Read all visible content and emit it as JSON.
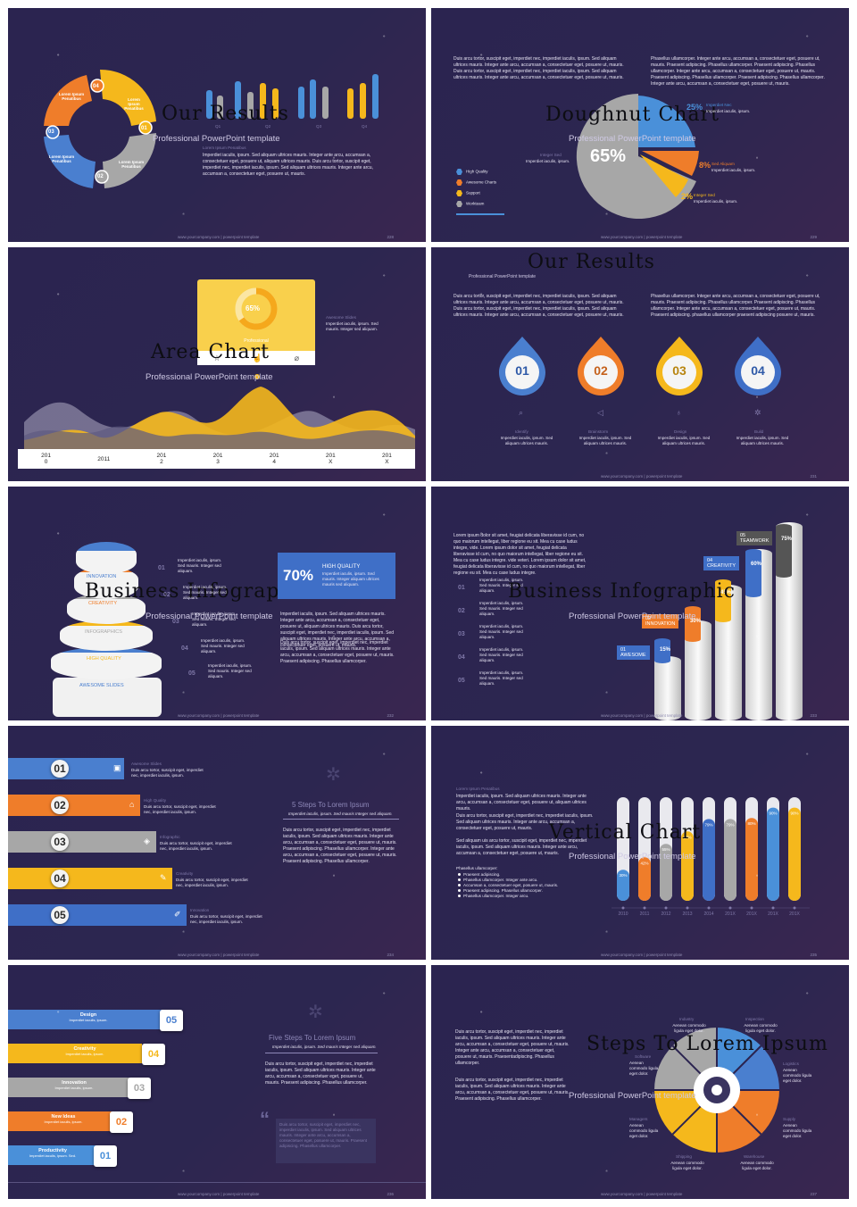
{
  "common": {
    "lorem_short": "Imperdiet iaculis, ipsum. Sed mauris. Integer sed aliquam.",
    "lorem_long": "Duis arcu tortor, suscipit eget, imperdiet nec, imperdiet iaculis, ipsum. Sed aliquam ultrices mauris. Integer ante arcu, accumsan a, consectetuer eget, posuere ut, mauris.",
    "lorem_long2": "Phasellus ullamcorper. Integer ante arcu, accumsan a, consectetuer eget, posuere ut, mauris. Praesent adipiscing. Phasellus ullamcorper. Praesent adipiscing. Phasellus ullamcorper. Integer ante arcu, accumsan a, consectetuer eget, posuere ut, mauris. Praesent adipiscing. phasellus ullamcorper praesent adipiscing posuere ut, mauris.",
    "footer_url": "www.yourcompany.com | powerpoint template",
    "watermark": "风云办公"
  },
  "s228": {
    "title": "Our Results",
    "subtitle": "Professional PowerPoint template",
    "heading": "Lorem Ipsum Penatibus",
    "body": "Imperdiet iaculis, ipsum. Sed aliquam ultrices mauris. Integer ante arcu, accumsan a, consectetuer eget, posuere ut, aliquam ultrices mauris. Duis arcu tortor, suscipit eget, imperdiet nec, imperdiet iaculis, ipsum. Sed aliquam ultrices mauris. Integer ante arcu, accumsan a, consectetuer eget, posuere ut, mauris.",
    "segments": [
      {
        "num": "04",
        "label": "Lorem Ipsum Penatibus",
        "color": "#ef7d2a"
      },
      {
        "num": "01",
        "label": "Lorem Ipsum Penatibus",
        "color": "#f5b81c"
      },
      {
        "num": "02",
        "label": "Lorem Ipsum Penatibus",
        "color": "#a7a7a7"
      },
      {
        "num": "03",
        "label": "Lorem Ipsum Penatibus",
        "color": "#4a7fcf"
      }
    ],
    "quarters": [
      "Q1",
      "Q2",
      "Q3",
      "Q4"
    ],
    "page": "228"
  },
  "s229": {
    "title": "Doughnut Chart",
    "subtitle": "Professional PowerPoint template",
    "body": "Duis arcu tortor, suscipit eget, imperdiet nec, imperdiet iaculis, ipsum. Sed aliquam ultrices mauris. Integer ante arcu, accumsan a, consectetuer eget, posuere ut, mauris. Duis arcu tortor, suscipit eget, imperdiet nec, imperdiet iaculis, ipsum. Sed aliquam ultrices mauris. Integer ante arcu, accumsan a, consectetuer eget, posuere ut, mauris.",
    "body2": "Phasellus ullamcorper. Integer ante arcu, accumsan a, consectetuer eget, posuere ut, mauris. Praesent adipiscing. Phasellus ullamcorper. Praesent adipiscing. Phasellus ullamcorper. Integer ante arcu, accumsan a, consectetuer eget, posuere ut, mauris. Praesent adipiscing. Phasellus ullamcorper. Praesent adipiscing. Phasellus ullamcorper. Integer ante arcu, accumsan a, consectetuer eget, posuere ut, mauris.",
    "big_pct": "65%",
    "legend": [
      {
        "label": "High Quality",
        "color": "#4a90d9"
      },
      {
        "label": "Awesome Charts",
        "color": "#ef7d2a"
      },
      {
        "label": "Support",
        "color": "#f5b81c"
      },
      {
        "label": "Workteam",
        "color": "#a7a7a7"
      }
    ],
    "callouts": [
      {
        "pct": "25%",
        "head": "Imperdiet Nec",
        "text": "Imperdiet iaculis, ipsum."
      },
      {
        "pct": "8%",
        "head": "Sed Aliquam",
        "text": "Imperdiet iaculis, ipsum."
      },
      {
        "pct": "2%",
        "head": "Integer Sed",
        "text": "Imperdiet iaculis, ipsum."
      }
    ],
    "left_head": "Integer Sed",
    "left_text": "Imperdiet iaculis, ipsum.",
    "page": "229"
  },
  "s230": {
    "title": "Area Chart",
    "subtitle": "Professional PowerPoint template",
    "card_pct": "65%",
    "card_label": "Professional",
    "side_head": "Awesome Slides",
    "side_text": "Imperdiet iaculis, ipsum. Sed mauris. Integer sed aliquam.",
    "years": [
      "201\n0",
      "2011",
      "201\n2",
      "201\n3",
      "201\n4",
      "201\nX",
      "201\nX"
    ],
    "page": "230"
  },
  "s231": {
    "title": "Our Results",
    "subtitle": "Professional PowerPoint template",
    "body": "Duis arcu tortor, suscipit eget, imperdiet nec, imperdiet iaculis, ipsum. Sed aliquam ultrices mauris. Integer ante arcu, accumsan a, consectetuer eget, posuere ut, mauris. Duis arcu tortor, suscipit eget, imperdiet nec, imperdiet iaculis, ipsum. Sed aliquam ultrices mauris. Integer ante arcu, accumsan a, consectetuer eget, posuere ut, mauris.",
    "drops": [
      {
        "num": "01",
        "label": "Identify",
        "color": "#4a7fcf"
      },
      {
        "num": "02",
        "label": "Brainstorm",
        "color": "#ef7d2a"
      },
      {
        "num": "03",
        "label": "Design",
        "color": "#f5b81c"
      },
      {
        "num": "04",
        "label": "Build",
        "color": "#3f6fc7"
      }
    ],
    "drop_text": "Imperdiet iaculis, ipsum. Sed aliquam ultrices mauris.",
    "page": "231"
  },
  "s232": {
    "title": "Business Infographic",
    "subtitle": "Professional PowerPoint template",
    "layers": [
      {
        "label": "INNOVATION",
        "color": "#4a7fcf"
      },
      {
        "label": "CREATIVITY",
        "color": "#ef7d2a"
      },
      {
        "label": "INFOGRAPHICS",
        "color": "#a7a7a7"
      },
      {
        "label": "HIGH QUALITY",
        "color": "#f5b81c"
      },
      {
        "label": "AWESOME SLIDES",
        "color": "#4a7fcf"
      }
    ],
    "steps": [
      "01",
      "02",
      "03",
      "04",
      "05"
    ],
    "box_pct": "70%",
    "box_head": "HIGH QUALITY",
    "box_text": "Imperdiet iaculis, ipsum. Sed mauris. Integer aliquam ultrices mauris sed aliquam.",
    "page": "232"
  },
  "s233": {
    "title": "Business Infographic",
    "subtitle": "Professional PowerPoint template",
    "body": "Lorem ipsum dolor sit amet, feugiat delicata liberavisse id cum, no quo maiorum intellegat, liber regione eu sit. Mea cu case ludus integre, vide. Lorem ipsum dolor sit amet, feugiat delicata liberavisse id cum, no quo maiorum intellegat, liber regione eu sit. Mea cu case ludus integre. vide veteri. Lorem ipsum dolor sit amet, feugiat delicata liberavisse id cum, no quo maiorum intellegat, liber regione eu sit. Mea cu case ludus integre.",
    "steps": [
      "01",
      "02",
      "03",
      "04",
      "05"
    ],
    "bars": [
      {
        "num": "01",
        "label": "AWESOME",
        "pct": "15%",
        "value": 15,
        "color": "#3f6fc7"
      },
      {
        "num": "02",
        "label": "INNOVATION",
        "pct": "30%",
        "value": 30,
        "color": "#ef7d2a"
      },
      {
        "num": "03",
        "label": "",
        "pct": "45%",
        "value": 45,
        "color": "#f5b81c"
      },
      {
        "num": "04",
        "label": "CREATIVITY",
        "pct": "60%",
        "value": 60,
        "color": "#3f6fc7"
      },
      {
        "num": "05",
        "label": "TEAMWORK",
        "pct": "75%",
        "value": 75,
        "color": "#555555"
      }
    ],
    "page": "233"
  },
  "s234": {
    "rows": [
      {
        "num": "01",
        "head": "Awesome Slides",
        "color": "#4a7fcf"
      },
      {
        "num": "02",
        "head": "High Quality",
        "color": "#ef7d2a"
      },
      {
        "num": "03",
        "head": "Infographic",
        "color": "#a7a7a7"
      },
      {
        "num": "04",
        "head": "Creativity",
        "color": "#f5b81c"
      },
      {
        "num": "05",
        "head": "Innovation",
        "color": "#3f6fc7"
      }
    ],
    "row_text": "Duis arcu tortor, suscipit eget, imperdiet nec, imperdiet iaculis, ipsum.",
    "right_title": "5 Steps To Lorem Ipsum",
    "right_sub": "Imperdiet iaculis, ipsum. Sed mauris Integer sed aliquam.",
    "right_body": "Duis arcu tortor, suscipit eget, imperdiet nec, imperdiet iaculis, ipsum. Sed aliquam ultrices mauris. Integer ante arcu, accumsan a, consectetuer eget, posuere ut, mauris. Praesent adipiscing. Phasellus ullamcorper. Integer ante arcu, accumsan a, consectetuer eget, posuere ut, mauris. Praesent adipiscing. Phasellus ullamcorper.",
    "footer": "www.yourcompany.com | powerpoint template",
    "page": "234"
  },
  "s235": {
    "title": "Vertical Chart",
    "subtitle": "Professional PowerPoint template",
    "heading": "Lorem Ipsum Penatibus",
    "body1": "Imperdiet iaculis, ipsum. Sed aliquam ultrices mauris. Integer ante arcu, accumsan a, consectetuer eget, posuere ut, aliquam ultrices mauris.",
    "body2": "Duis arcu tortor, suscipit eget, imperdiet nec, imperdiet iaculis, ipsum. Sed aliquam ultrices mauris. Integer ante arcu, accumsan a, consectetuer eget, posuere ut, mauris.",
    "body3": "Sed aliquam uis arcu tortor, suscipit eget, imperdiet nec, imperdiet iaculis, ipsum. Sed aliquam ultrices mauris. Integer ante arcu, accumsan a, consectetuer eget, posuere ut, mauris.",
    "list_head": "Phasellus ullamcorper:",
    "list": [
      "Praesent adipiscing.",
      "Phasellus ullamcorper. Integer ante arcu.",
      "Accumsan a, consectetuer eget, posuere ut, mauris.",
      "Praesent adipiscing. Phasellus ullamcorper.",
      "Phasellus ullamcorper. Integer arcu."
    ],
    "chart_data": {
      "type": "bar",
      "categories": [
        "2010",
        "2011",
        "2012",
        "2013",
        "2014",
        "201X",
        "201X",
        "201X",
        "201X"
      ],
      "values": [
        30,
        42,
        55,
        67,
        79,
        79,
        80,
        90,
        90
      ],
      "labels": [
        "30%",
        "42%",
        "55%",
        "67%",
        "79%",
        "79%",
        "80%",
        "90%",
        "90%"
      ],
      "colors": [
        "#4a90d9",
        "#ef7d2a",
        "#a7a7a7",
        "#f5b81c",
        "#3f6fc7",
        "#a7a7a7",
        "#ef7d2a",
        "#4a90d9",
        "#f5b81c"
      ],
      "ylim": [
        0,
        100
      ]
    },
    "page": "235"
  },
  "s236": {
    "bands": [
      {
        "num": "05",
        "head": "Design",
        "text": "Imperdiet iaculis, ipsum.",
        "color": "#4a7fcf"
      },
      {
        "num": "04",
        "head": "Creativity",
        "text": "Imperdiet iaculis, ipsum.",
        "color": "#f5b81c"
      },
      {
        "num": "03",
        "head": "Innovation",
        "text": "Imperdiet iaculis, ipsum.",
        "color": "#a7a7a7"
      },
      {
        "num": "02",
        "head": "New Ideas",
        "text": "Imperdiet iaculis, ipsum.",
        "color": "#ef7d2a"
      },
      {
        "num": "01",
        "head": "Productivity",
        "text": "Imperdiet iaculis, ipsum. Sed.",
        "color": "#4a90d9"
      }
    ],
    "right_title": "Five Steps To Lorem Ipsum",
    "right_sub": "Imperdiet iaculis, ipsum. Sed mauris Integer sed aliquam.",
    "right_body": "Duis arcu tortor, suscipit eget, imperdiet nec, imperdiet iaculis, ipsum. Sed aliquam ultrices mauris. Integer ante arcu, accumsan a, consectetuer eget, posuere ut, mauris. Praesent adipiscing. Phasellus ullamcorper.",
    "quote": "Duis arcu tortor, suscipit eget, imperdiet nec, imperdiet iaculis, ipsum. Sed aliquam ultrices mauris. Integer ante arcu, accumsan a, consectetuer eget, posuere ut, mauris. Praesent adipiscing. Phasellus ullamcorper.",
    "page": "236"
  },
  "s237": {
    "title": "Steps To Lorem Ipsum",
    "subtitle": "Professional PowerPoint template",
    "body1": "Duis arcu tortor, suscipit eget, imperdiet nec, imperdiet iaculis, ipsum. Sed aliquam ultrices mauris. Integer ante arcu, accumsan a, consectetuer eget, posuere ut, mauris. Integer ante arcu, accumsan a, consectetuer eget, posuere ut, mauris. Praesentadipiscing. Phasellus ullamcorper.",
    "body2": "Duis arcu tortor, suscipit eget, imperdiet nec, imperdiet iaculis, ipsum. Sed aliquam ultrices mauris. Integer ante arcu, accumsan a, consectetuer eget, posuere ut, mauris. Praesent adipiscing. Phasellus ullamcorper.",
    "wheel": [
      {
        "label": "Industry",
        "color": "#a7a7a7"
      },
      {
        "label": "Inspection",
        "color": "#4a90d9"
      },
      {
        "label": "Logistics",
        "color": "#4a7fcf"
      },
      {
        "label": "Supply",
        "color": "#ef7d2a"
      },
      {
        "label": "Warehouse",
        "color": "#ef7d2a"
      },
      {
        "label": "Shipping",
        "color": "#f5b81c"
      },
      {
        "label": "Managers",
        "color": "#f5b81c"
      },
      {
        "label": "Software",
        "color": "#a7a7a7"
      }
    ],
    "wheel_text": "Aenean commodo ligula eget dolor.",
    "page": "237"
  }
}
